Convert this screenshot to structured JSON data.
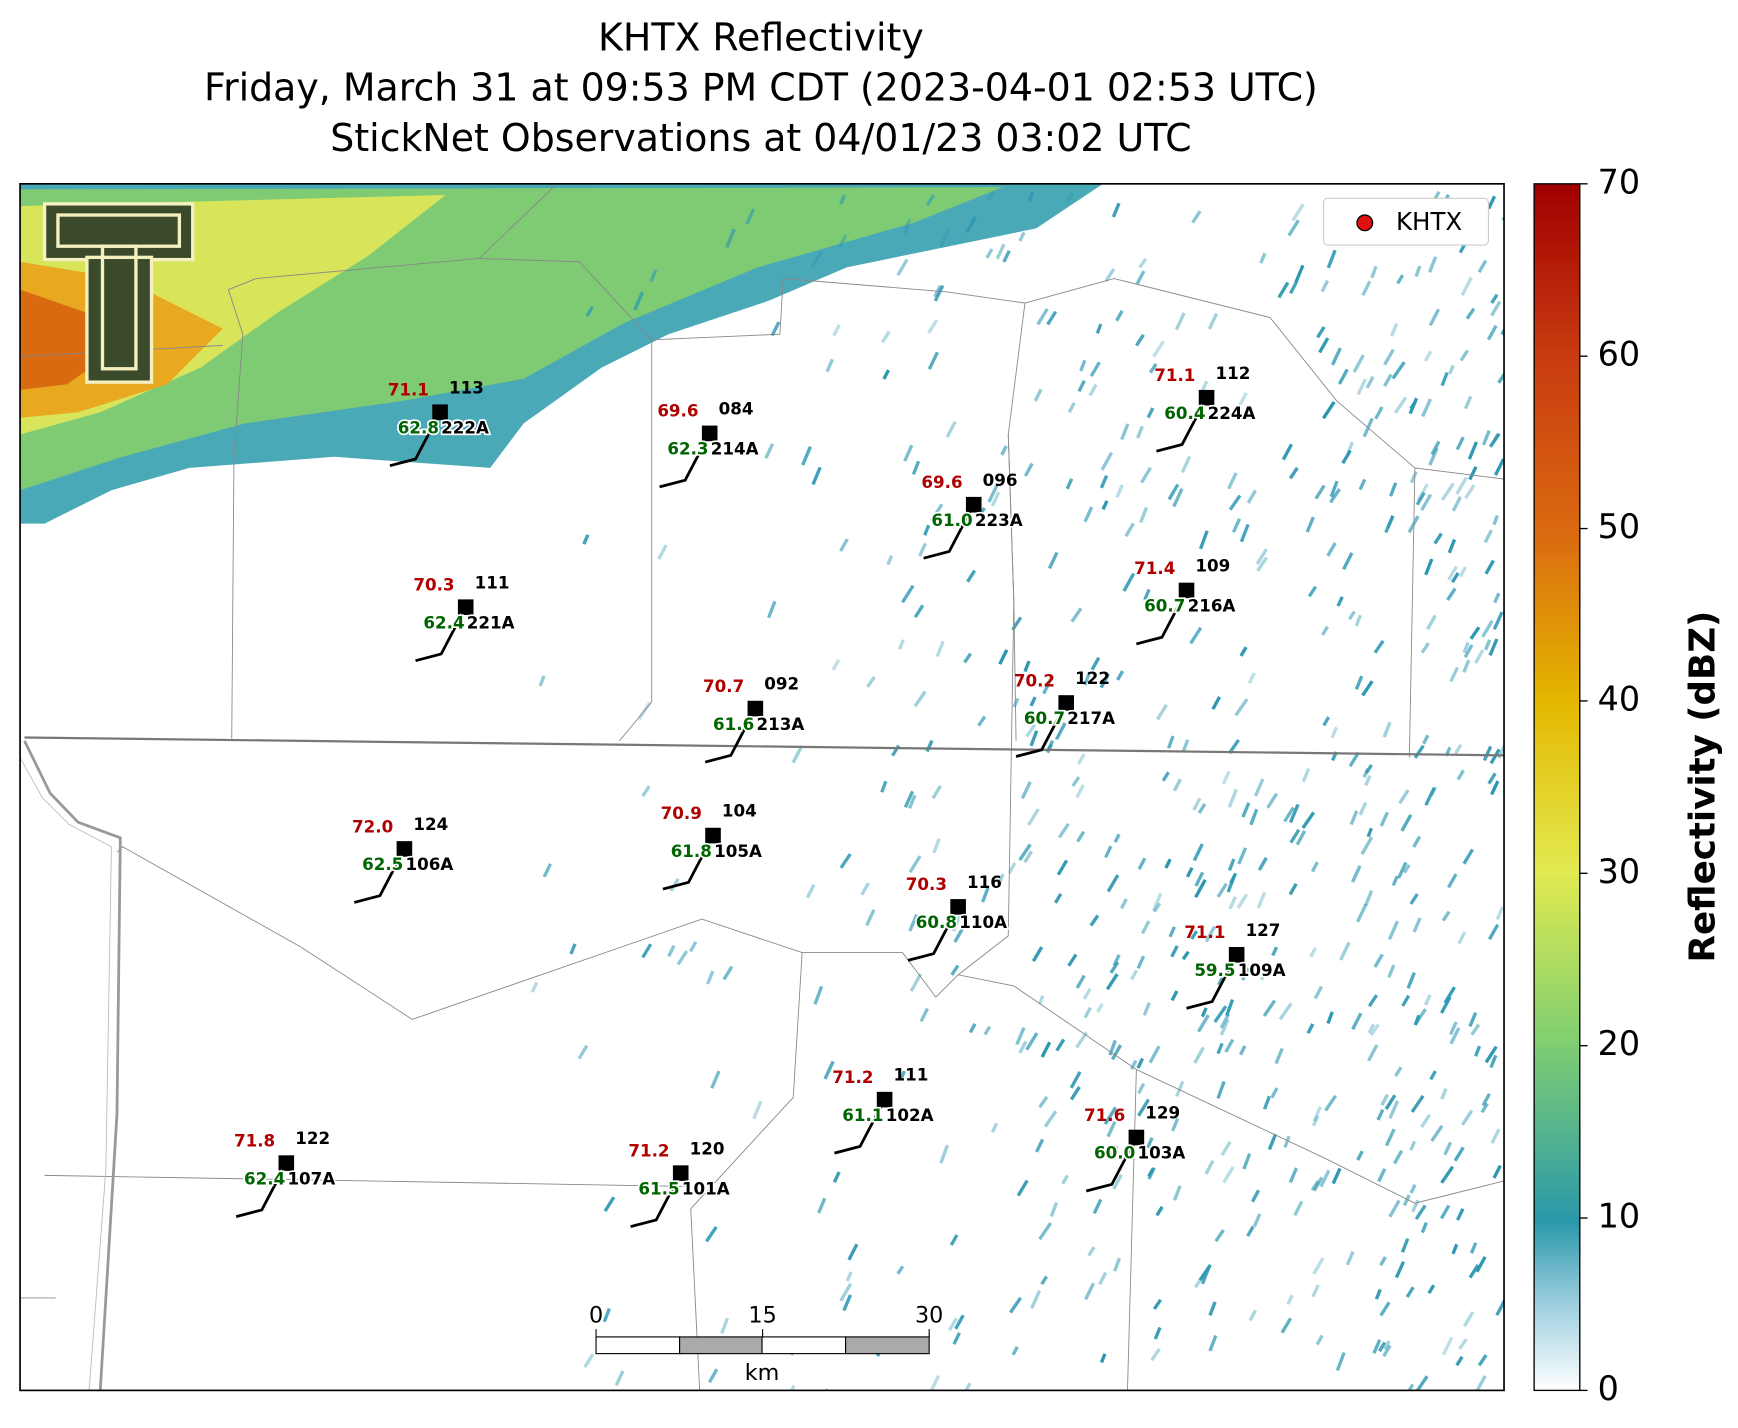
{
  "title": [
    "KHTX Reflectivity",
    "Friday, March 31 at 09:53 PM CDT (2023-04-01 02:53 UTC)",
    "StickNet Observations at 04/01/23 03:02 UTC"
  ],
  "legend": [
    "KHTX"
  ],
  "stations": [
    {
      "id": "222A",
      "temperature": "71.1",
      "dewpoint": "62.8",
      "code": "113"
    },
    {
      "id": "214A",
      "temperature": "69.6",
      "dewpoint": "62.3",
      "code": "084"
    },
    {
      "id": "223A",
      "temperature": "69.6",
      "dewpoint": "61.0",
      "code": "096"
    },
    {
      "id": "224A",
      "temperature": "71.1",
      "dewpoint": "60.4",
      "code": "112"
    },
    {
      "id": "221A",
      "temperature": "70.3",
      "dewpoint": "62.4",
      "code": "111"
    },
    {
      "id": "216A",
      "temperature": "71.4",
      "dewpoint": "60.7",
      "code": "109"
    },
    {
      "id": "213A",
      "temperature": "70.7",
      "dewpoint": "61.6",
      "code": "092"
    },
    {
      "id": "217A",
      "temperature": "70.2",
      "dewpoint": "60.7",
      "code": "122"
    },
    {
      "id": "106A",
      "temperature": "72.0",
      "dewpoint": "62.5",
      "code": "124"
    },
    {
      "id": "105A",
      "temperature": "70.9",
      "dewpoint": "61.8",
      "code": "104"
    },
    {
      "id": "110A",
      "temperature": "70.3",
      "dewpoint": "60.8",
      "code": "116"
    },
    {
      "id": "109A",
      "temperature": "71.1",
      "dewpoint": "59.5",
      "code": "127"
    },
    {
      "id": "102A",
      "temperature": "71.2",
      "dewpoint": "61.1",
      "code": "111"
    },
    {
      "id": "103A",
      "temperature": "71.6",
      "dewpoint": "60.0",
      "code": "129"
    },
    {
      "id": "107A",
      "temperature": "71.8",
      "dewpoint": "62.4",
      "code": "122"
    },
    {
      "id": "101A",
      "temperature": "71.2",
      "dewpoint": "61.5",
      "code": "120"
    }
  ],
  "colorbar": {
    "label": "Reflectivity (dBZ)",
    "lim": [
      0,
      70
    ],
    "ticks": [
      0,
      10,
      20,
      30,
      40,
      50,
      60,
      70
    ]
  },
  "scale_bar": {
    "lim": [
      0,
      30
    ],
    "ticks": [
      0,
      15,
      30
    ],
    "unit": "km"
  }
}
